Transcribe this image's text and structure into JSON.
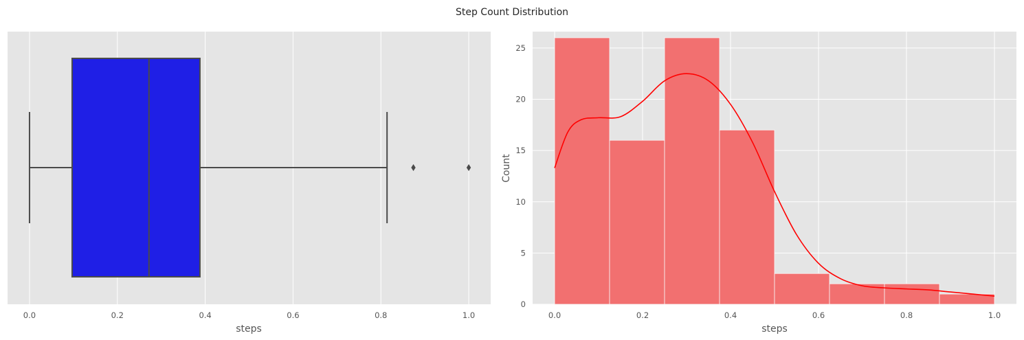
{
  "figure": {
    "title": "Step Count Distribution"
  },
  "chart_data": [
    {
      "type": "box",
      "xlabel": "steps",
      "ylabel": "",
      "xlim": [
        -0.05,
        1.05
      ],
      "xticks": [
        0.0,
        0.2,
        0.4,
        0.6,
        0.8,
        1.0
      ],
      "xtick_labels": [
        "0.0",
        "0.2",
        "0.4",
        "0.6",
        "0.8",
        "1.0"
      ],
      "grid": true,
      "box": {
        "whisker_low": 0.0,
        "q1": 0.097,
        "median": 0.272,
        "q3": 0.388,
        "whisker_high": 0.814,
        "outliers": [
          0.874,
          1.0
        ],
        "color": "#1f1fe6",
        "line_color": "#4a4a4a"
      }
    },
    {
      "type": "bar",
      "subtype": "histogram_with_kde",
      "xlabel": "steps",
      "ylabel": "Count",
      "xlim": [
        -0.05,
        1.05
      ],
      "ylim": [
        0,
        26.6
      ],
      "xticks": [
        0.0,
        0.2,
        0.4,
        0.6,
        0.8,
        1.0
      ],
      "xtick_labels": [
        "0.0",
        "0.2",
        "0.4",
        "0.6",
        "0.8",
        "1.0"
      ],
      "yticks": [
        0,
        5,
        10,
        15,
        20,
        25
      ],
      "ytick_labels": [
        "0",
        "5",
        "10",
        "15",
        "20",
        "25"
      ],
      "grid": true,
      "bin_edges": [
        0.0,
        0.125,
        0.25,
        0.375,
        0.5,
        0.625,
        0.75,
        0.875,
        1.0
      ],
      "counts": [
        26,
        16,
        26,
        17,
        3,
        2,
        2,
        1
      ],
      "bar_color": "#f27070",
      "kde": {
        "color": "#ff0000",
        "x": [
          0.0,
          0.03,
          0.06,
          0.1,
          0.15,
          0.2,
          0.25,
          0.3,
          0.35,
          0.4,
          0.45,
          0.5,
          0.55,
          0.6,
          0.65,
          0.7,
          0.75,
          0.8,
          0.85,
          0.9,
          0.95,
          1.0
        ],
        "y": [
          13.3,
          16.8,
          18.0,
          18.2,
          18.3,
          19.8,
          21.8,
          22.5,
          21.8,
          19.5,
          15.8,
          11.0,
          6.8,
          4.0,
          2.5,
          1.8,
          1.6,
          1.5,
          1.4,
          1.2,
          1.0,
          0.8
        ]
      }
    }
  ]
}
